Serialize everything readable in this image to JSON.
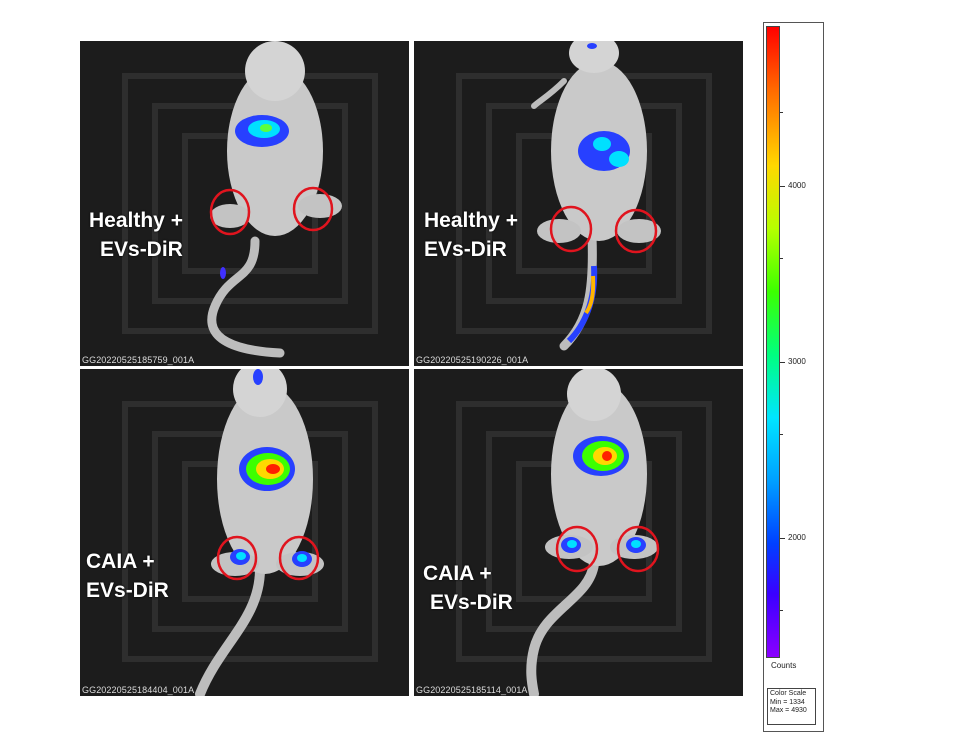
{
  "panels": [
    {
      "caption": "GG20220525185759_001A",
      "label_line1": "Healthy +",
      "label_line2": "EVs-DiR"
    },
    {
      "caption": "GG20220525190226_001A",
      "label_line1": "Healthy +",
      "label_line2": "EVs-DiR"
    },
    {
      "caption": "GG20220525184404_001A",
      "label_line1": "CAIA +",
      "label_line2": "EVs-DiR"
    },
    {
      "caption": "GG20220525185114_001A",
      "label_line1": "CAIA +",
      "label_line2": "EVs-DiR"
    }
  ],
  "color_scale": {
    "ticks": [
      "4000",
      "3000",
      "2000"
    ],
    "units_label": "Counts",
    "legend_title": "Color Scale",
    "min_label": "Min = 1334",
    "max_label": "Max = 4930",
    "min": 1334,
    "max": 4930,
    "colors": [
      "#ff0000",
      "#ffd800",
      "#3cff00",
      "#00e5ff",
      "#0040ff",
      "#8a00ff"
    ]
  },
  "marker_color": "#e0141e"
}
